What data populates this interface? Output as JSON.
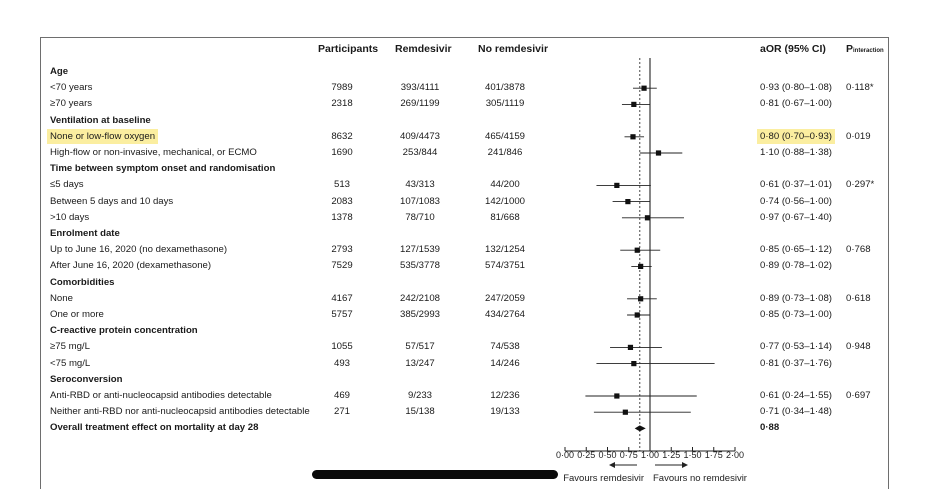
{
  "headers": {
    "participants": "Participants",
    "remdesivir": "Remdesivir",
    "no_remdesivir": "No remdesivir",
    "aor": "aOR (95% CI)",
    "p_main": "P",
    "p_sub": "interaction"
  },
  "rows": [
    {
      "kind": "section",
      "label": "Age"
    },
    {
      "kind": "data",
      "label": "<70 years",
      "participants": "7989",
      "remdesivir": "393/4111",
      "no_remdesivir": "401/3878",
      "aor": "0·93 (0·80–1·08)",
      "p": "0·118*"
    },
    {
      "kind": "data",
      "label": "≥70 years",
      "participants": "2318",
      "remdesivir": "269/1199",
      "no_remdesivir": "305/1119",
      "aor": "0·81 (0·67–1·00)",
      "p": ""
    },
    {
      "kind": "section",
      "label": "Ventilation at baseline"
    },
    {
      "kind": "data",
      "label": "None or low-flow oxygen",
      "participants": "8632",
      "remdesivir": "409/4473",
      "no_remdesivir": "465/4159",
      "aor": "0·80 (0·70–0·93)",
      "p": "0·019",
      "highlight": true
    },
    {
      "kind": "data",
      "label": "High-flow or non-invasive, mechanical, or ECMO",
      "participants": "1690",
      "remdesivir": "253/844",
      "no_remdesivir": "241/846",
      "aor": "1·10 (0·88–1·38)",
      "p": ""
    },
    {
      "kind": "section",
      "label": "Time between symptom onset and randomisation"
    },
    {
      "kind": "data",
      "label": "≤5 days",
      "participants": "513",
      "remdesivir": "43/313",
      "no_remdesivir": "44/200",
      "aor": "0·61 (0·37–1·01)",
      "p": "0·297*"
    },
    {
      "kind": "data",
      "label": "Between 5 days and 10 days",
      "participants": "2083",
      "remdesivir": "107/1083",
      "no_remdesivir": "142/1000",
      "aor": "0·74 (0·56–1·00)",
      "p": ""
    },
    {
      "kind": "data",
      "label": ">10 days",
      "participants": "1378",
      "remdesivir": "78/710",
      "no_remdesivir": "81/668",
      "aor": "0·97 (0·67–1·40)",
      "p": ""
    },
    {
      "kind": "section",
      "label": "Enrolment date"
    },
    {
      "kind": "data",
      "label": "Up to June 16, 2020 (no dexamethasone)",
      "participants": "2793",
      "remdesivir": "127/1539",
      "no_remdesivir": "132/1254",
      "aor": "0·85 (0·65–1·12)",
      "p": "0·768"
    },
    {
      "kind": "data",
      "label": "After June 16, 2020 (dexamethasone)",
      "participants": "7529",
      "remdesivir": "535/3778",
      "no_remdesivir": "574/3751",
      "aor": "0·89 (0·78–1·02)",
      "p": ""
    },
    {
      "kind": "section",
      "label": "Comorbidities"
    },
    {
      "kind": "data",
      "label": "None",
      "participants": "4167",
      "remdesivir": "242/2108",
      "no_remdesivir": "247/2059",
      "aor": "0·89 (0·73–1·08)",
      "p": "0·618"
    },
    {
      "kind": "data",
      "label": "One or more",
      "participants": "5757",
      "remdesivir": "385/2993",
      "no_remdesivir": "434/2764",
      "aor": "0·85 (0·73–1·00)",
      "p": ""
    },
    {
      "kind": "section",
      "label": "C-reactive protein concentration"
    },
    {
      "kind": "data",
      "label": "≥75 mg/L",
      "participants": "1055",
      "remdesivir": "57/517",
      "no_remdesivir": "74/538",
      "aor": "0·77 (0·53–1·14)",
      "p": "0·948"
    },
    {
      "kind": "data",
      "label": "<75 mg/L",
      "participants": "493",
      "remdesivir": "13/247",
      "no_remdesivir": "14/246",
      "aor": "0·81 (0·37–1·76)",
      "p": ""
    },
    {
      "kind": "section",
      "label": "Seroconversion"
    },
    {
      "kind": "data",
      "label": "Anti-RBD or anti-nucleocapsid antibodies detectable",
      "participants": "469",
      "remdesivir": "9/233",
      "no_remdesivir": "12/236",
      "aor": "0·61 (0·24–1·55)",
      "p": "0·697"
    },
    {
      "kind": "data",
      "label": "Neither anti-RBD nor anti-nucleocapsid antibodies detectable",
      "participants": "271",
      "remdesivir": "15/138",
      "no_remdesivir": "19/133",
      "aor": "0·71 (0·34–1·48)",
      "p": ""
    },
    {
      "kind": "overall",
      "label": "Overall treatment effect on mortality at day 28",
      "aor": "0·88"
    }
  ],
  "chart_data": {
    "type": "forest",
    "x_ticks": [
      "0·00",
      "0·25",
      "0·50",
      "0·75",
      "1·00",
      "1·25",
      "1·50",
      "1·75",
      "2·00"
    ],
    "xlim": [
      0,
      2
    ],
    "reference_line": 1.0,
    "overall_line": 0.88,
    "favours_left": "Favours remdesivir",
    "favours_right": "Favours no remdesivir",
    "points": [
      {
        "row": 1,
        "or": 0.93,
        "lo": 0.8,
        "hi": 1.08
      },
      {
        "row": 2,
        "or": 0.81,
        "lo": 0.67,
        "hi": 1.0
      },
      {
        "row": 4,
        "or": 0.8,
        "lo": 0.7,
        "hi": 0.93
      },
      {
        "row": 5,
        "or": 1.1,
        "lo": 0.88,
        "hi": 1.38
      },
      {
        "row": 7,
        "or": 0.61,
        "lo": 0.37,
        "hi": 1.01
      },
      {
        "row": 8,
        "or": 0.74,
        "lo": 0.56,
        "hi": 1.0
      },
      {
        "row": 9,
        "or": 0.97,
        "lo": 0.67,
        "hi": 1.4
      },
      {
        "row": 11,
        "or": 0.85,
        "lo": 0.65,
        "hi": 1.12
      },
      {
        "row": 12,
        "or": 0.89,
        "lo": 0.78,
        "hi": 1.02
      },
      {
        "row": 14,
        "or": 0.89,
        "lo": 0.73,
        "hi": 1.08
      },
      {
        "row": 15,
        "or": 0.85,
        "lo": 0.73,
        "hi": 1.0
      },
      {
        "row": 17,
        "or": 0.77,
        "lo": 0.53,
        "hi": 1.14
      },
      {
        "row": 18,
        "or": 0.81,
        "lo": 0.37,
        "hi": 1.76
      },
      {
        "row": 20,
        "or": 0.61,
        "lo": 0.24,
        "hi": 1.55
      },
      {
        "row": 21,
        "or": 0.71,
        "lo": 0.34,
        "hi": 1.48
      }
    ],
    "overall": {
      "row": 22,
      "or": 0.88,
      "lo": 0.82,
      "hi": 0.95
    }
  }
}
